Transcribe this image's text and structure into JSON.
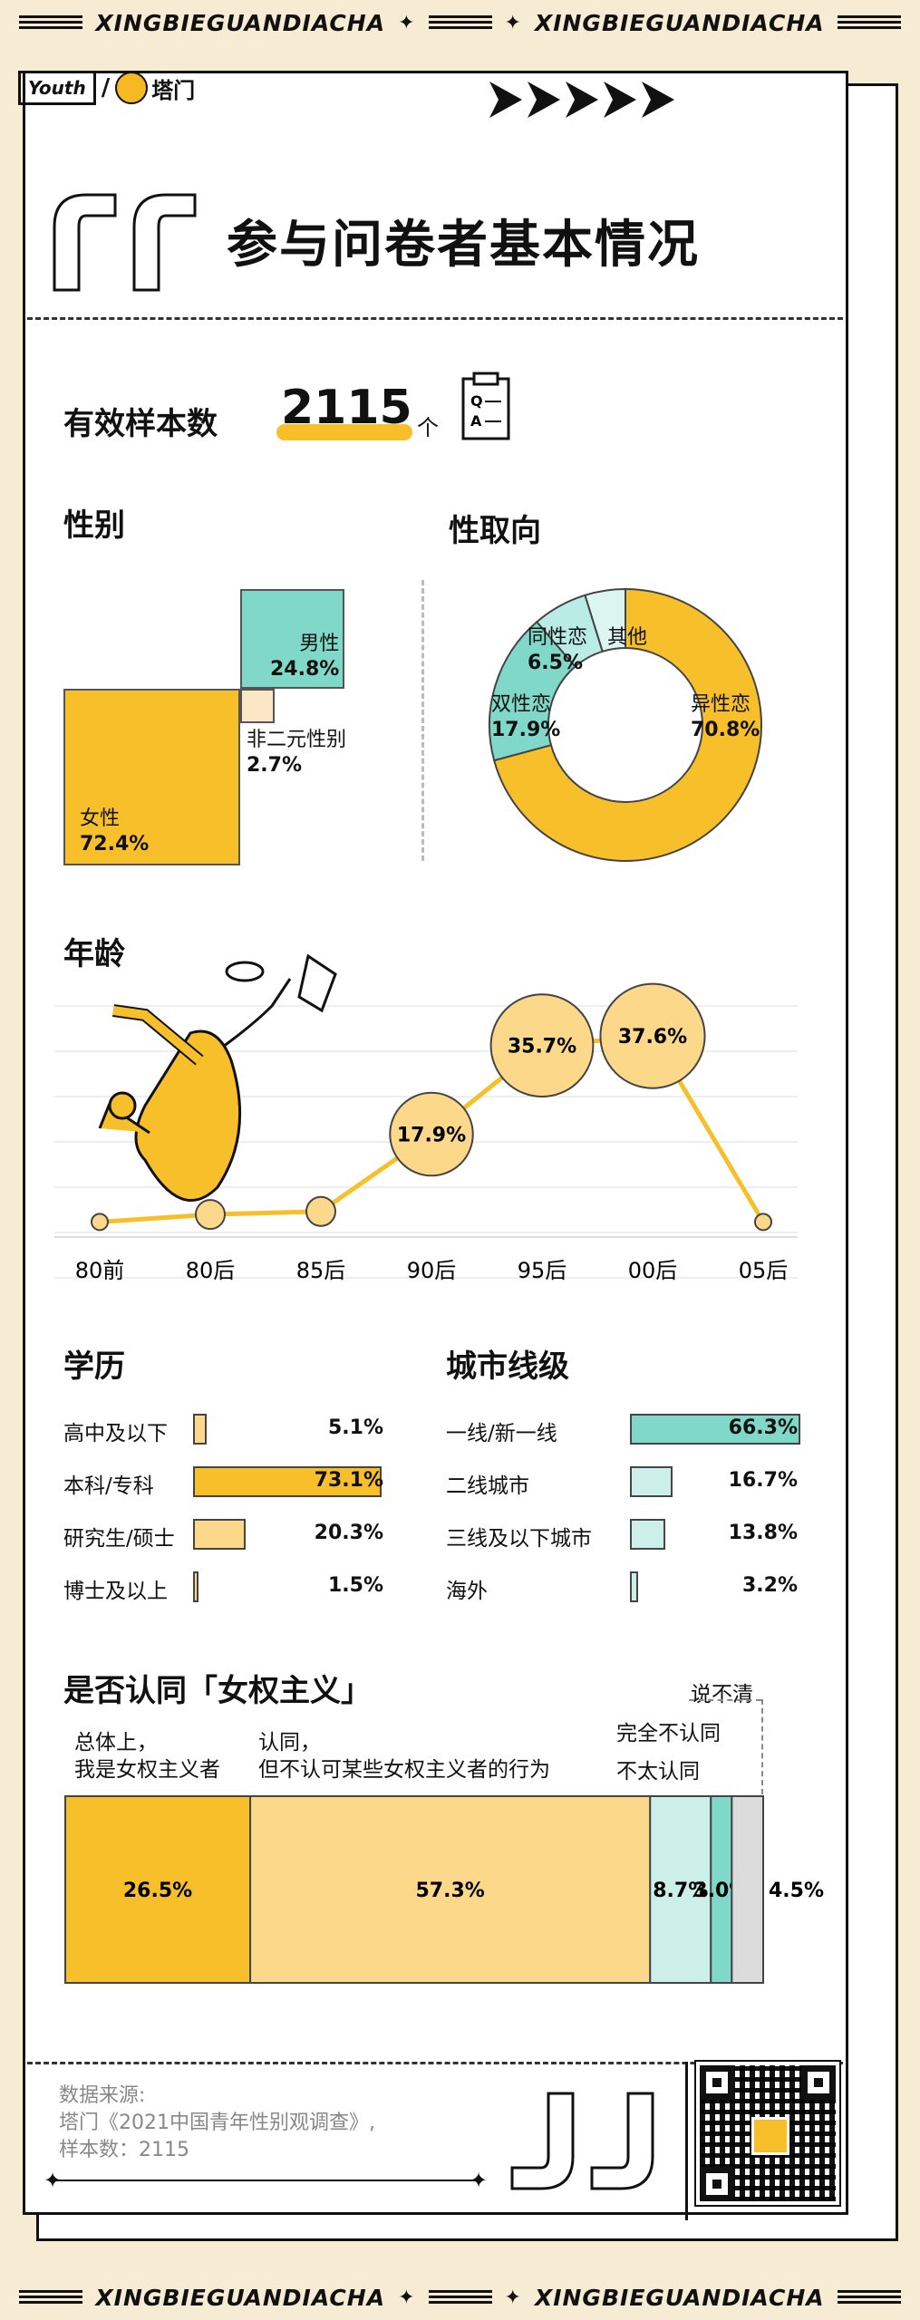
{
  "ticker": {
    "text": "XINGBIEGUANDIACHA",
    "star": "✦"
  },
  "logo": {
    "left": "Youth",
    "right": "塔门"
  },
  "title": "参与问卷者基本情况",
  "sample": {
    "label": "有效样本数",
    "value": "2115",
    "unit": "个",
    "icon": "questionnaire-icon"
  },
  "gender": {
    "title": "性别",
    "items": [
      {
        "name": "男性",
        "pct": "24.8%",
        "value": 24.8
      },
      {
        "name": "非二元性别",
        "pct": "2.7%",
        "value": 2.7
      },
      {
        "name": "女性",
        "pct": "72.4%",
        "value": 72.4
      }
    ]
  },
  "orientation": {
    "title": "性取向",
    "items": [
      {
        "name": "异性恋",
        "pct": "70.8%",
        "value": 70.8,
        "color": "#f7c02b"
      },
      {
        "name": "双性恋",
        "pct": "17.9%",
        "value": 17.9,
        "color": "#7fd8c8"
      },
      {
        "name": "同性恋",
        "pct": "6.5%",
        "value": 6.5,
        "color": "#b8ece4"
      },
      {
        "name": "其他",
        "pct": "",
        "value": 4.8,
        "color": "#ddf5f0"
      }
    ]
  },
  "chart_data": [
    {
      "type": "line",
      "title": "年龄",
      "categories": [
        "80前",
        "80后",
        "85后",
        "90后",
        "95后",
        "00后",
        "05后"
      ],
      "values": [
        0.3,
        1.8,
        2.4,
        17.9,
        35.7,
        37.6,
        0.3
      ],
      "labels": [
        "",
        "",
        "",
        "17.9%",
        "35.7%",
        "37.6%",
        ""
      ]
    },
    {
      "type": "bar",
      "title": "学历",
      "categories": [
        "高中及以下",
        "本科/专科",
        "研究生/硕士",
        "博士及以上"
      ],
      "values": [
        5.1,
        73.1,
        20.3,
        1.5
      ],
      "labels": [
        "5.1%",
        "73.1%",
        "20.3%",
        "1.5%"
      ]
    },
    {
      "type": "bar",
      "title": "城市线级",
      "categories": [
        "一线/新一线",
        "二线城市",
        "三线及以下城市",
        "海外"
      ],
      "values": [
        66.3,
        16.7,
        13.8,
        3.2
      ],
      "labels": [
        "66.3%",
        "16.7%",
        "13.8%",
        "3.2%"
      ]
    },
    {
      "type": "bar",
      "title": "是否认同「女权主义」",
      "categories": [
        "总体上，我是女权主义者",
        "认同，但不认可某些女权主义者的行为",
        "不太认同",
        "完全不认同",
        "说不清"
      ],
      "values": [
        26.5,
        57.3,
        8.7,
        3.0,
        4.5
      ],
      "labels": [
        "26.5%",
        "57.3%",
        "8.7%",
        "3.0%",
        "4.5%"
      ]
    }
  ],
  "feminism": {
    "cat1_line1": "总体上，",
    "cat1_line2": "我是女权主义者",
    "cat2_line1": "认同，",
    "cat2_line2": "但不认可某些女权主义者的行为",
    "cat3": "不太认同",
    "cat4": "完全不认同",
    "cat5": "说不清"
  },
  "source": {
    "line1": "数据来源:",
    "line2": "塔门《2021中国青年性别观调查》,",
    "line3": "样本数：2115"
  },
  "colors": {
    "yellow": "#f7c02b",
    "light_yellow": "#fcd98a",
    "teal": "#7fd8c8",
    "light_teal": "#ccefea",
    "cream": "#fbe6c6"
  }
}
